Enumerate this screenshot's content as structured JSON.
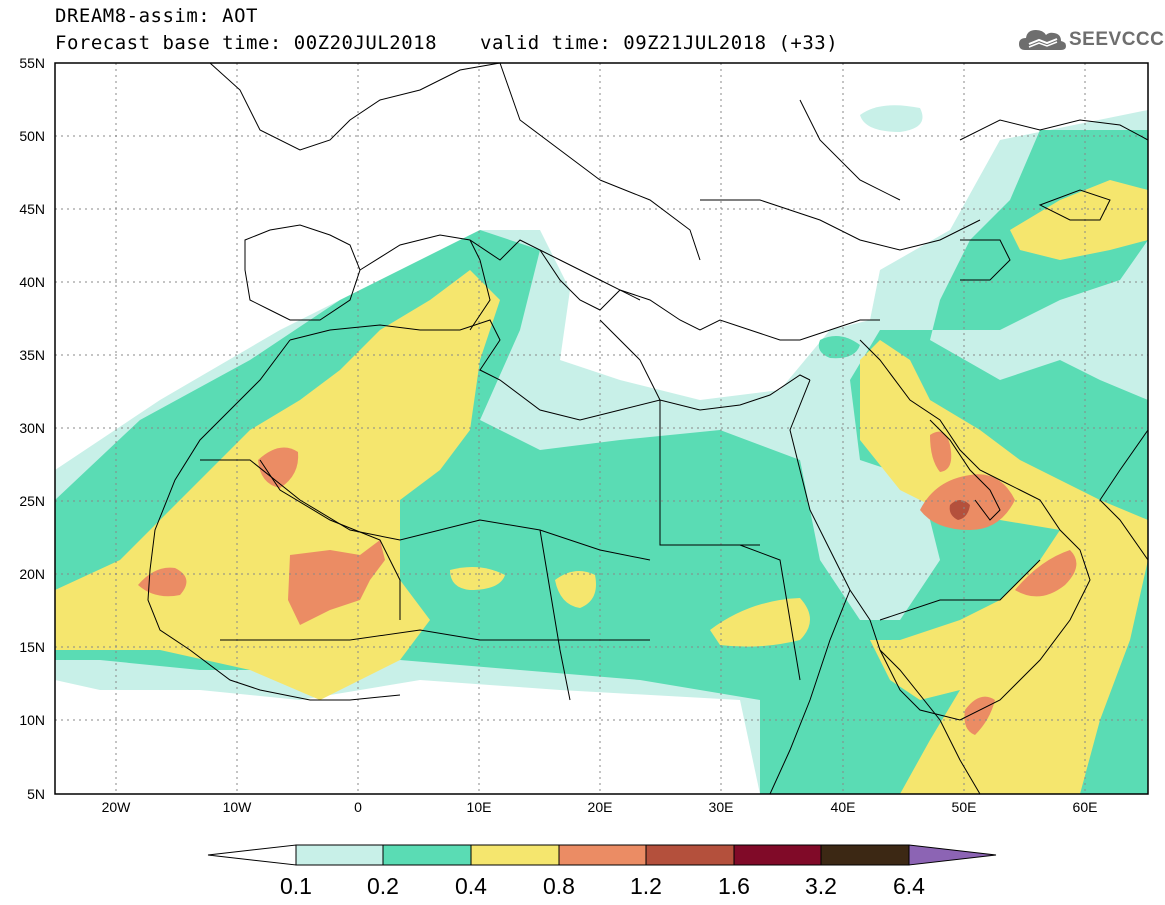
{
  "header": {
    "title": "DREAM8-assim: AOT",
    "base_time": "Forecast base time: 00Z20JUL2018",
    "valid_time": "valid time: 09Z21JUL2018 (+33)"
  },
  "logo": {
    "icon": "cloud-icon",
    "text": "SEEVCCC"
  },
  "map": {
    "lat_labels": [
      "55N",
      "50N",
      "45N",
      "40N",
      "35N",
      "30N",
      "25N",
      "20N",
      "15N",
      "10N",
      "5N"
    ],
    "lon_labels": [
      "20W",
      "10W",
      "0",
      "10E",
      "20E",
      "30E",
      "40E",
      "50E",
      "60E"
    ],
    "grid": "dotted"
  },
  "colorbar": {
    "labels": [
      "0.1",
      "0.2",
      "0.4",
      "0.8",
      "1.2",
      "1.6",
      "3.2",
      "6.4"
    ],
    "colors": [
      "#c8f0e8",
      "#5adcb4",
      "#f5e66e",
      "#eb8c64",
      "#b4503c",
      "#800a28",
      "#3c2814",
      "#8c64b4"
    ],
    "under_color": "#ffffff"
  },
  "colors": {
    "level1": "#c8f0e8",
    "level2": "#5adcb4",
    "level3": "#f5e66e",
    "level4": "#eb8c64",
    "level5": "#b4503c"
  }
}
